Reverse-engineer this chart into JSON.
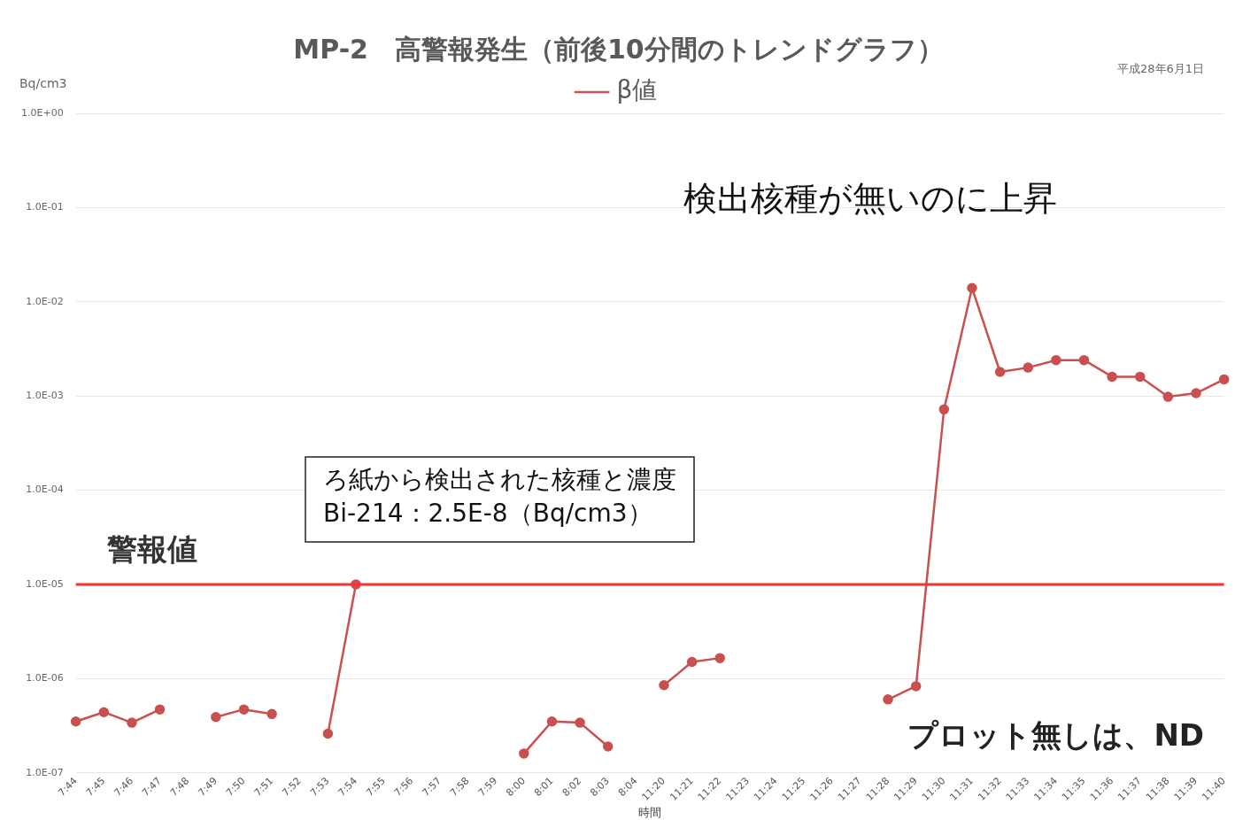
{
  "chart_data": {
    "type": "line",
    "title": "MP-2　高警報発生（前後10分間のトレンドグラフ）",
    "xlabel": "時間",
    "ylabel": "Bq/cm3",
    "categories": [
      "7:44",
      "7:45",
      "7:46",
      "7:47",
      "7:48",
      "7:49",
      "7:50",
      "7:51",
      "7:52",
      "7:53",
      "7:54",
      "7:55",
      "7:56",
      "7:57",
      "7:58",
      "7:59",
      "8:00",
      "8:01",
      "8:02",
      "8:03",
      "8:04",
      "11:20",
      "11:21",
      "11:22",
      "11:23",
      "11:24",
      "11:25",
      "11:26",
      "11:27",
      "11:28",
      "11:29",
      "11:30",
      "11:31",
      "11:32",
      "11:33",
      "11:34",
      "11:35",
      "11:36",
      "11:37",
      "11:38",
      "11:39",
      "11:40"
    ],
    "series": [
      {
        "name": "β値",
        "color": "#c9504f",
        "values": [
          3.5e-07,
          4.4e-07,
          3.4e-07,
          4.7e-07,
          null,
          3.9e-07,
          4.7e-07,
          4.2e-07,
          null,
          2.6e-07,
          1e-05,
          null,
          null,
          null,
          null,
          null,
          1.6e-07,
          3.5e-07,
          3.4e-07,
          1.9e-07,
          null,
          8.5e-07,
          1.5e-06,
          1.65e-06,
          null,
          null,
          null,
          null,
          null,
          6e-07,
          8.3e-07,
          0.00072,
          0.014,
          0.0018,
          0.002,
          0.0024,
          0.0024,
          0.0016,
          0.0016,
          0.00098,
          0.00107,
          0.0015
        ]
      }
    ],
    "log": "y",
    "ylim": [
      1e-07,
      1
    ],
    "yticks": [
      {
        "value": 1e-07,
        "label": "1.0E-07"
      },
      {
        "value": 1e-06,
        "label": "1.0E-06"
      },
      {
        "value": 1e-05,
        "label": "1.0E-05"
      },
      {
        "value": 0.0001,
        "label": "1.0E-04"
      },
      {
        "value": 0.001,
        "label": "1.0E-03"
      },
      {
        "value": 0.01,
        "label": "1.0E-02"
      },
      {
        "value": 0.1,
        "label": "1.0E-01"
      },
      {
        "value": 1,
        "label": "1.0E+00"
      }
    ],
    "ref_lines": [
      {
        "axis": "y",
        "value": 1e-05,
        "label": "警報値",
        "color": "#ff3030"
      }
    ],
    "annotations": [
      "平成28年6月1日",
      "検出核種が無いのに上昇",
      "ろ紙から検出された核種と濃度\nBi-214：2.5E-8（Bq/cm3）",
      "プロット無しは、ND"
    ],
    "grid": "y",
    "legend": "top",
    "marker": "circle",
    "line_style": "solid"
  }
}
